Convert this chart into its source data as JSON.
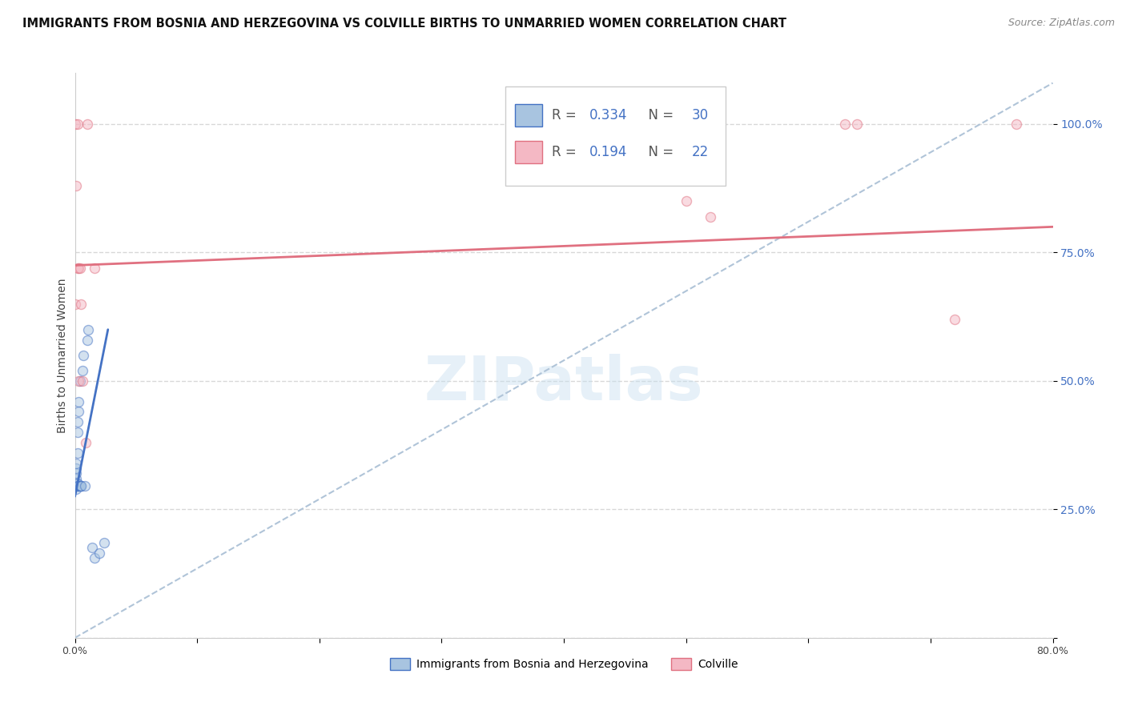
{
  "title": "IMMIGRANTS FROM BOSNIA AND HERZEGOVINA VS COLVILLE BIRTHS TO UNMARRIED WOMEN CORRELATION CHART",
  "source": "Source: ZipAtlas.com",
  "ylabel": "Births to Unmarried Women",
  "blue_R": "0.334",
  "blue_N": "30",
  "pink_R": "0.194",
  "pink_N": "22",
  "blue_color": "#a8c4e0",
  "pink_color": "#f4b8c4",
  "blue_line_color": "#4472c4",
  "pink_line_color": "#e07080",
  "blue_label": "Immigrants from Bosnia and Herzegovina",
  "pink_label": "Colville",
  "watermark": "ZIPatlas",
  "xlim": [
    0.0,
    0.8
  ],
  "ylim": [
    0.0,
    1.1
  ],
  "grid_color": "#d8d8d8",
  "background_color": "#ffffff",
  "title_fontsize": 10.5,
  "source_fontsize": 9,
  "scatter_size": 75,
  "scatter_alpha": 0.5,
  "scatter_linewidth": 1.0,
  "blue_scatter_x": [
    0.001,
    0.001,
    0.001,
    0.001,
    0.001,
    0.001,
    0.001,
    0.002,
    0.002,
    0.002,
    0.002,
    0.002,
    0.003,
    0.003,
    0.003,
    0.003,
    0.004,
    0.004,
    0.005,
    0.005,
    0.005,
    0.006,
    0.007,
    0.008,
    0.01,
    0.011,
    0.014,
    0.016,
    0.02,
    0.024
  ],
  "blue_scatter_y": [
    0.29,
    0.3,
    0.31,
    0.32,
    0.33,
    0.34,
    0.295,
    0.3,
    0.36,
    0.4,
    0.42,
    0.295,
    0.44,
    0.46,
    0.295,
    0.295,
    0.5,
    0.295,
    0.295,
    0.295,
    0.295,
    0.52,
    0.55,
    0.295,
    0.58,
    0.6,
    0.175,
    0.155,
    0.165,
    0.185
  ],
  "pink_scatter_x": [
    0.0,
    0.0,
    0.001,
    0.002,
    0.002,
    0.003,
    0.003,
    0.004,
    0.005,
    0.006,
    0.009,
    0.01,
    0.016,
    0.37,
    0.38,
    0.39,
    0.5,
    0.52,
    0.63,
    0.64,
    0.72,
    0.77
  ],
  "pink_scatter_y": [
    0.65,
    1.0,
    0.88,
    0.72,
    1.0,
    0.5,
    0.72,
    0.72,
    0.65,
    0.5,
    0.38,
    1.0,
    0.72,
    1.0,
    1.0,
    1.0,
    0.85,
    0.82,
    1.0,
    1.0,
    0.62,
    1.0
  ],
  "blue_line_x": [
    0.0,
    0.027
  ],
  "blue_line_y": [
    0.275,
    0.6
  ],
  "pink_line_x": [
    0.0,
    0.8
  ],
  "pink_line_y": [
    0.725,
    0.8
  ],
  "gray_line_x": [
    0.0,
    0.8
  ],
  "gray_line_y": [
    0.0,
    1.08
  ]
}
